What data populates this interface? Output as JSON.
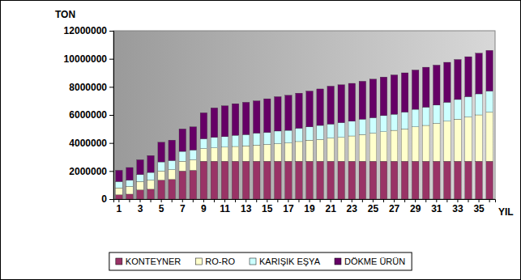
{
  "chart_data": {
    "type": "bar",
    "stacked": true,
    "grid": false,
    "legend": "bottom",
    "y_label": "TON",
    "x_label": "YIL",
    "categories": [
      "1",
      null,
      "3",
      null,
      "5",
      null,
      "7",
      null,
      "9",
      null,
      "11",
      null,
      "13",
      null,
      "15",
      null,
      "17",
      null,
      "19",
      null,
      "21",
      null,
      "23",
      null,
      "25",
      null,
      "27",
      null,
      "29",
      null,
      "31",
      null,
      "33",
      null,
      "35",
      null
    ],
    "ylim": [
      0,
      12000000
    ],
    "yticks": [
      0,
      2000000,
      4000000,
      6000000,
      8000000,
      10000000,
      12000000
    ],
    "series": [
      {
        "name": "KONTEYNER",
        "color": "#993366",
        "values": [
          300000,
          350000,
          650000,
          700000,
          1350000,
          1400000,
          2000000,
          2050000,
          2700000,
          2700000,
          2700000,
          2700000,
          2700000,
          2700000,
          2700000,
          2700000,
          2700000,
          2700000,
          2700000,
          2700000,
          2700000,
          2700000,
          2700000,
          2700000,
          2700000,
          2700000,
          2700000,
          2700000,
          2700000,
          2700000,
          2700000,
          2700000,
          2700000,
          2700000,
          2700000,
          2700000
        ]
      },
      {
        "name": "RO-RO",
        "color": "#FFFFCC",
        "values": [
          500000,
          550000,
          600000,
          650000,
          650000,
          700000,
          700000,
          750000,
          900000,
          950000,
          1000000,
          1050000,
          1100000,
          1150000,
          1200000,
          1250000,
          1300000,
          1400000,
          1500000,
          1550000,
          1650000,
          1700000,
          1800000,
          1900000,
          2000000,
          2100000,
          2200000,
          2300000,
          2450000,
          2550000,
          2700000,
          2850000,
          3000000,
          3150000,
          3300000,
          3500000
        ]
      },
      {
        "name": "KARIŞIK EŞYA",
        "color": "#CCFFFF",
        "values": [
          450000,
          450000,
          500000,
          550000,
          650000,
          650000,
          700000,
          700000,
          700000,
          750000,
          750000,
          800000,
          800000,
          850000,
          850000,
          900000,
          900000,
          950000,
          950000,
          1000000,
          1000000,
          1050000,
          1050000,
          1100000,
          1100000,
          1150000,
          1150000,
          1200000,
          1250000,
          1300000,
          1300000,
          1350000,
          1400000,
          1450000,
          1500000,
          1500000
        ]
      },
      {
        "name": "DÖKME ÜRÜN",
        "color": "#660066",
        "values": [
          800000,
          900000,
          1050000,
          1200000,
          1400000,
          1450000,
          1600000,
          1650000,
          1850000,
          2100000,
          2200000,
          2250000,
          2300000,
          2300000,
          2400000,
          2450000,
          2500000,
          2500000,
          2550000,
          2600000,
          2700000,
          2700000,
          2700000,
          2700000,
          2750000,
          2750000,
          2800000,
          2800000,
          2800000,
          2850000,
          2850000,
          2850000,
          2850000,
          2850000,
          2900000,
          2900000
        ]
      }
    ]
  }
}
